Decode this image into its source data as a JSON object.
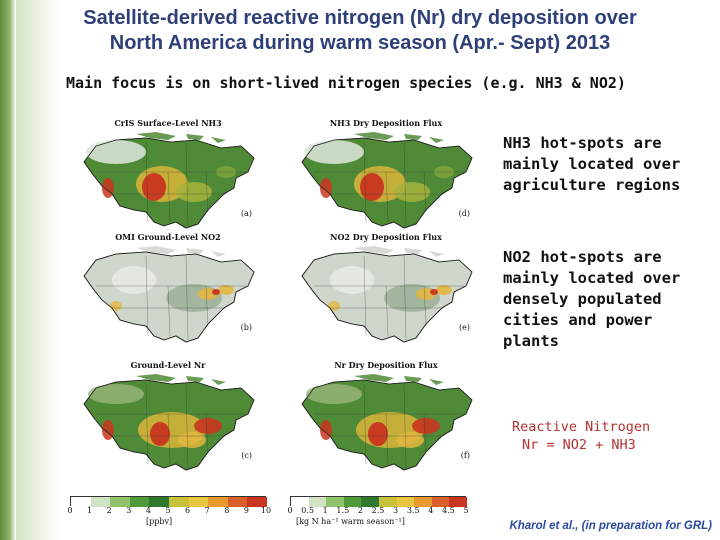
{
  "title_line1": "Satellite-derived reactive nitrogen (Nr) dry deposition over",
  "title_line2": "North America during warm season (Apr.- Sept) 2013",
  "subtitle": "Main focus is on short-lived nitrogen species (e.g. NH3 & NO2)",
  "panels": [
    {
      "title": "CrIS Surface-Level NH3",
      "letter": "(a)",
      "style": "nh3"
    },
    {
      "title": "NH3 Dry Deposition Flux",
      "letter": "(d)",
      "style": "nh3"
    },
    {
      "title": "OMI Ground-Level NO2",
      "letter": "(b)",
      "style": "no2"
    },
    {
      "title": "NO2 Dry Deposition Flux",
      "letter": "(e)",
      "style": "no2"
    },
    {
      "title": "Ground-Level Nr",
      "letter": "(c)",
      "style": "nr"
    },
    {
      "title": "Nr Dry Deposition Flux",
      "letter": "(f)",
      "style": "nr"
    }
  ],
  "notes": {
    "nh3_hotspots": [
      "NH3 hot-spots are",
      "mainly located over",
      "agriculture regions"
    ],
    "no2_hotspots": [
      "NO2 hot-spots are",
      "mainly located over",
      "densely populated",
      "cities and power",
      "plants"
    ]
  },
  "reactive_nitrogen": {
    "heading": "Reactive Nitrogen",
    "formula": "Nr = NO2 + NH3"
  },
  "colorbar_left": {
    "ticks": [
      "0",
      "1",
      "2",
      "3",
      "4",
      "5",
      "6",
      "7",
      "8",
      "9",
      "10"
    ],
    "unit": "[ppbv]"
  },
  "colorbar_right": {
    "ticks": [
      "0",
      "0.5",
      "1",
      "1.5",
      "2",
      "2.5",
      "3",
      "3.5",
      "4",
      "4.5",
      "5"
    ],
    "unit": "[kg N ha⁻¹ warm season⁻¹]"
  },
  "colors": {
    "title": "#2f3f78",
    "nr_text": "#b3322e",
    "citation": "#2b4aa0",
    "land_green": "#4f8a36",
    "hotspot": "#b8231a"
  },
  "citation": "Kharol et al., (in preparation for GRL)"
}
